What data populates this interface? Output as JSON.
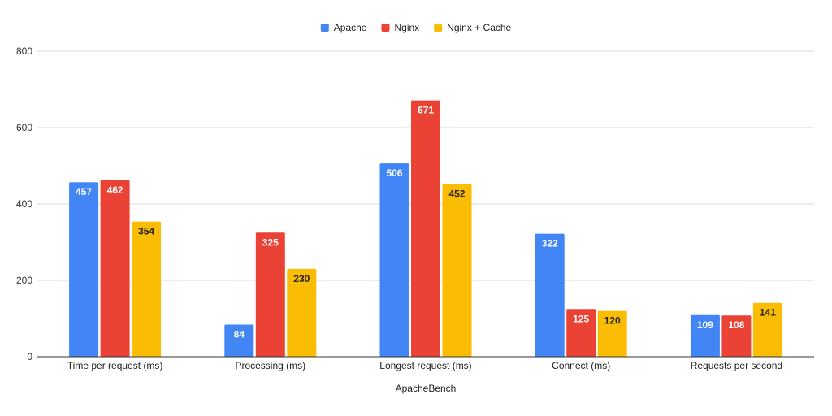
{
  "chart_data": {
    "type": "bar",
    "title": "",
    "xlabel": "ApacheBench",
    "ylabel": "",
    "categories": [
      "Time per request (ms)",
      "Processing (ms)",
      "Longest request (ms)",
      "Connect (ms)",
      "Requests per second"
    ],
    "series": [
      {
        "name": "Apache",
        "color": "#4285f4",
        "label_color": "#ffffff",
        "values": [
          457,
          84,
          506,
          322,
          109
        ]
      },
      {
        "name": "Nginx",
        "color": "#ea4335",
        "label_color": "#ffffff",
        "values": [
          462,
          325,
          671,
          125,
          108
        ]
      },
      {
        "name": "Nginx + Cache",
        "color": "#fbbc04",
        "label_color": "#222222",
        "values": [
          354,
          230,
          452,
          120,
          141
        ]
      }
    ],
    "ylim": [
      0,
      800
    ],
    "yticks": [
      0,
      200,
      400,
      600,
      800
    ],
    "grid": true,
    "legend": "top-center"
  }
}
